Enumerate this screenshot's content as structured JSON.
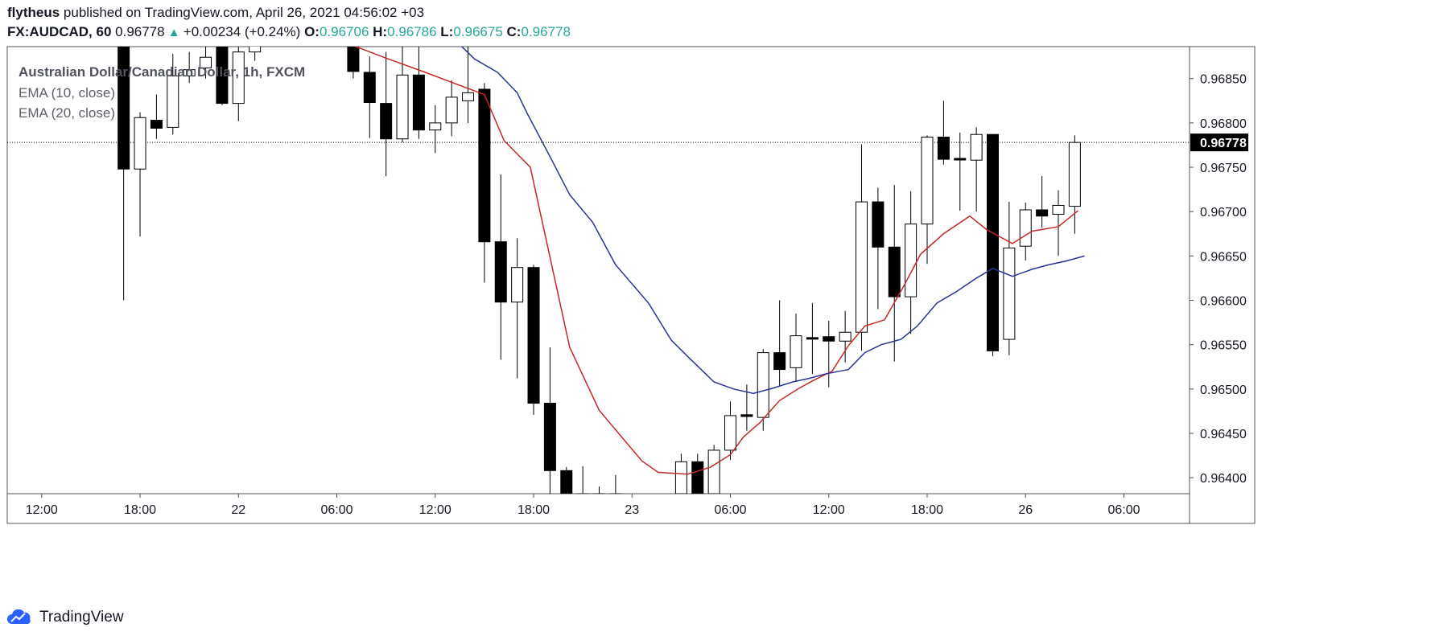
{
  "header": {
    "author": "flytheus",
    "published_text": "published on TradingView.com, April 26, 2021 04:56:02 +03",
    "symbol": "FX:AUDCAD, 60",
    "last_price": "0.96778",
    "change": "+0.00234 (+0.24%)",
    "open_label": "O:",
    "open": "0.96706",
    "high_label": "H:",
    "high": "0.96786",
    "low_label": "L:",
    "low": "0.96675",
    "close_label": "C:",
    "close": "0.96778"
  },
  "legend": {
    "title": "Australian Dollar/Canadian Dollar, 1h, FXCM",
    "ema10": "EMA (10, close)",
    "ema20": "EMA (20, close)"
  },
  "footer": {
    "brand": "TradingView"
  },
  "colors": {
    "up_fill": "#ffffff",
    "down_fill": "#000000",
    "candle_border": "#000000",
    "ema10": "#c62828",
    "ema20": "#283593",
    "price_tag_bg": "#000000",
    "axis_text": "#131722",
    "grid_border": "#50535e"
  },
  "chart_data": {
    "type": "candlestick",
    "title": "Australian Dollar/Canadian Dollar, 1h, FXCM",
    "ylim": [
      0.96382,
      0.96886
    ],
    "yticks": [
      0.964,
      0.9645,
      0.965,
      0.9655,
      0.966,
      0.9665,
      0.967,
      0.9675,
      0.968,
      0.9685
    ],
    "ytick_labels": [
      "0.96400",
      "0.96450",
      "0.96500",
      "0.96550",
      "0.96600",
      "0.96650",
      "0.96700",
      "0.96750",
      "0.96800",
      "0.96850"
    ],
    "xlim": [
      -10.05,
      26.0
    ],
    "xticks": [
      {
        "t": -9,
        "label": "12:00"
      },
      {
        "t": -6,
        "label": "18:00"
      },
      {
        "t": -3,
        "label": "22"
      },
      {
        "t": 0,
        "label": "06:00"
      },
      {
        "t": 3,
        "label": "12:00"
      },
      {
        "t": 6,
        "label": "18:00"
      },
      {
        "t": 9,
        "label": "23"
      },
      {
        "t": 12,
        "label": "06:00"
      },
      {
        "t": 15,
        "label": "12:00"
      },
      {
        "t": 18,
        "label": "18:00"
      },
      {
        "t": 21,
        "label": "26"
      },
      {
        "t": 24,
        "label": "06:00"
      }
    ],
    "current_price": 0.96778,
    "current_price_label": "0.96778",
    "candles": [
      {
        "t": -6.5,
        "o": 0.9689,
        "h": 0.9689,
        "l": 0.966,
        "c": 0.96748
      },
      {
        "t": -6.0,
        "o": 0.96748,
        "h": 0.96812,
        "l": 0.96672,
        "c": 0.96806
      },
      {
        "t": -5.5,
        "o": 0.96803,
        "h": 0.96832,
        "l": 0.96782,
        "c": 0.96794
      },
      {
        "t": -5.0,
        "o": 0.96795,
        "h": 0.96878,
        "l": 0.96787,
        "c": 0.96853
      },
      {
        "t": -4.5,
        "o": 0.96853,
        "h": 0.9688,
        "l": 0.96845,
        "c": 0.9686
      },
      {
        "t": -4.0,
        "o": 0.96862,
        "h": 0.9689,
        "l": 0.9685,
        "c": 0.96874
      },
      {
        "t": -3.5,
        "o": 0.9689,
        "h": 0.9689,
        "l": 0.9682,
        "c": 0.96822
      },
      {
        "t": -3.0,
        "o": 0.96822,
        "h": 0.9689,
        "l": 0.96802,
        "c": 0.9688
      },
      {
        "t": -2.5,
        "o": 0.9688,
        "h": 0.9689,
        "l": 0.9687,
        "c": 0.9689
      },
      {
        "t": 0.5,
        "o": 0.9689,
        "h": 0.9689,
        "l": 0.9685,
        "c": 0.96858
      },
      {
        "t": 1.0,
        "o": 0.96857,
        "h": 0.96875,
        "l": 0.96783,
        "c": 0.96823
      },
      {
        "t": 1.5,
        "o": 0.96822,
        "h": 0.9688,
        "l": 0.9674,
        "c": 0.96782
      },
      {
        "t": 2.0,
        "o": 0.96782,
        "h": 0.9689,
        "l": 0.96778,
        "c": 0.96854
      },
      {
        "t": 2.5,
        "o": 0.96854,
        "h": 0.9689,
        "l": 0.96782,
        "c": 0.96792
      },
      {
        "t": 3.0,
        "o": 0.96792,
        "h": 0.9682,
        "l": 0.96766,
        "c": 0.968
      },
      {
        "t": 3.5,
        "o": 0.968,
        "h": 0.96848,
        "l": 0.96785,
        "c": 0.96829
      },
      {
        "t": 4.0,
        "o": 0.96825,
        "h": 0.9689,
        "l": 0.968,
        "c": 0.96834
      },
      {
        "t": 4.5,
        "o": 0.96838,
        "h": 0.96845,
        "l": 0.9662,
        "c": 0.96666
      },
      {
        "t": 5.0,
        "o": 0.96666,
        "h": 0.96742,
        "l": 0.96533,
        "c": 0.96598
      },
      {
        "t": 5.5,
        "o": 0.96598,
        "h": 0.9667,
        "l": 0.96512,
        "c": 0.96637
      },
      {
        "t": 6.0,
        "o": 0.96637,
        "h": 0.9664,
        "l": 0.96471,
        "c": 0.96484
      },
      {
        "t": 6.5,
        "o": 0.96484,
        "h": 0.96547,
        "l": 0.96382,
        "c": 0.96408
      },
      {
        "t": 7.0,
        "o": 0.96408,
        "h": 0.96412,
        "l": 0.96382,
        "c": 0.96382
      },
      {
        "t": 7.5,
        "o": 0.96382,
        "h": 0.96413,
        "l": 0.96382,
        "c": 0.96382
      },
      {
        "t": 8.0,
        "o": 0.96382,
        "h": 0.9639,
        "l": 0.96382,
        "c": 0.96382
      },
      {
        "t": 8.5,
        "o": 0.96382,
        "h": 0.96403,
        "l": 0.96382,
        "c": 0.96382
      },
      {
        "t": 10.5,
        "o": 0.96382,
        "h": 0.96427,
        "l": 0.96382,
        "c": 0.96418
      },
      {
        "t": 11.0,
        "o": 0.96418,
        "h": 0.96427,
        "l": 0.96382,
        "c": 0.96382
      },
      {
        "t": 11.5,
        "o": 0.96382,
        "h": 0.96437,
        "l": 0.96382,
        "c": 0.96431
      },
      {
        "t": 12.0,
        "o": 0.96431,
        "h": 0.96486,
        "l": 0.9642,
        "c": 0.9647
      },
      {
        "t": 12.5,
        "o": 0.96471,
        "h": 0.96505,
        "l": 0.96453,
        "c": 0.96469
      },
      {
        "t": 13.0,
        "o": 0.96468,
        "h": 0.96545,
        "l": 0.96453,
        "c": 0.96541
      },
      {
        "t": 13.5,
        "o": 0.96541,
        "h": 0.966,
        "l": 0.96503,
        "c": 0.96522
      },
      {
        "t": 14.0,
        "o": 0.96524,
        "h": 0.96585,
        "l": 0.96508,
        "c": 0.9656
      },
      {
        "t": 14.5,
        "o": 0.96558,
        "h": 0.96597,
        "l": 0.96517,
        "c": 0.96557
      },
      {
        "t": 15.0,
        "o": 0.96559,
        "h": 0.96577,
        "l": 0.96502,
        "c": 0.96554
      },
      {
        "t": 15.5,
        "o": 0.96554,
        "h": 0.96588,
        "l": 0.9653,
        "c": 0.96564
      },
      {
        "t": 16.0,
        "o": 0.96564,
        "h": 0.96776,
        "l": 0.96543,
        "c": 0.96711
      },
      {
        "t": 16.5,
        "o": 0.96711,
        "h": 0.96727,
        "l": 0.9659,
        "c": 0.9666
      },
      {
        "t": 17.0,
        "o": 0.9666,
        "h": 0.9673,
        "l": 0.96531,
        "c": 0.96604
      },
      {
        "t": 17.5,
        "o": 0.96604,
        "h": 0.96723,
        "l": 0.96562,
        "c": 0.96686
      },
      {
        "t": 18.0,
        "o": 0.96686,
        "h": 0.96786,
        "l": 0.96641,
        "c": 0.96784
      },
      {
        "t": 18.5,
        "o": 0.96784,
        "h": 0.96825,
        "l": 0.96753,
        "c": 0.96759
      },
      {
        "t": 19.0,
        "o": 0.9676,
        "h": 0.96789,
        "l": 0.96701,
        "c": 0.96759
      },
      {
        "t": 19.5,
        "o": 0.96758,
        "h": 0.96795,
        "l": 0.967,
        "c": 0.96787
      },
      {
        "t": 20.0,
        "o": 0.96787,
        "h": 0.96787,
        "l": 0.96537,
        "c": 0.96543
      },
      {
        "t": 20.5,
        "o": 0.96556,
        "h": 0.96711,
        "l": 0.96538,
        "c": 0.96659
      },
      {
        "t": 21.0,
        "o": 0.96661,
        "h": 0.9671,
        "l": 0.96645,
        "c": 0.96702
      },
      {
        "t": 21.5,
        "o": 0.96702,
        "h": 0.9674,
        "l": 0.96682,
        "c": 0.96695
      },
      {
        "t": 22.0,
        "o": 0.96697,
        "h": 0.96724,
        "l": 0.9665,
        "c": 0.96707
      },
      {
        "t": 22.5,
        "o": 0.96706,
        "h": 0.96786,
        "l": 0.96675,
        "c": 0.96778
      }
    ],
    "series": [
      {
        "name": "EMA (10, close)",
        "color": "#c62828",
        "points": [
          [
            -6.5,
            0.9689
          ],
          [
            -2.0,
            0.9689
          ],
          [
            0.3,
            0.9689
          ],
          [
            1.5,
            0.96873
          ],
          [
            2.7,
            0.96857
          ],
          [
            3.7,
            0.96843
          ],
          [
            4.5,
            0.96832
          ],
          [
            5.1,
            0.9678
          ],
          [
            5.9,
            0.9675
          ],
          [
            7.1,
            0.96547
          ],
          [
            8.0,
            0.96476
          ],
          [
            9.3,
            0.96419
          ],
          [
            9.8,
            0.96406
          ],
          [
            10.7,
            0.96404
          ],
          [
            11.4,
            0.96412
          ],
          [
            12.0,
            0.96426
          ],
          [
            12.4,
            0.96446
          ],
          [
            12.9,
            0.96462
          ],
          [
            13.5,
            0.96487
          ],
          [
            14.1,
            0.96501
          ],
          [
            14.6,
            0.96511
          ],
          [
            15.1,
            0.9652
          ],
          [
            15.6,
            0.96549
          ],
          [
            16.1,
            0.96571
          ],
          [
            16.7,
            0.96578
          ],
          [
            17.3,
            0.96617
          ],
          [
            17.8,
            0.96652
          ],
          [
            18.5,
            0.96675
          ],
          [
            19.3,
            0.96695
          ],
          [
            19.8,
            0.9668
          ],
          [
            20.6,
            0.96664
          ],
          [
            21.2,
            0.96678
          ],
          [
            22.0,
            0.96683
          ],
          [
            22.6,
            0.96701
          ]
        ]
      },
      {
        "name": "EMA (20, close)",
        "color": "#283593",
        "points": [
          [
            -6.5,
            0.9689
          ],
          [
            3.7,
            0.9689
          ],
          [
            4.2,
            0.96872
          ],
          [
            4.9,
            0.96857
          ],
          [
            5.5,
            0.96834
          ],
          [
            5.8,
            0.96811
          ],
          [
            6.5,
            0.96762
          ],
          [
            7.1,
            0.96719
          ],
          [
            7.8,
            0.96688
          ],
          [
            8.5,
            0.9664
          ],
          [
            9.5,
            0.96597
          ],
          [
            10.2,
            0.96555
          ],
          [
            10.8,
            0.96533
          ],
          [
            11.5,
            0.96508
          ],
          [
            12.1,
            0.965
          ],
          [
            12.7,
            0.96495
          ],
          [
            13.3,
            0.96501
          ],
          [
            13.9,
            0.96508
          ],
          [
            14.4,
            0.96512
          ],
          [
            14.9,
            0.96517
          ],
          [
            15.6,
            0.96522
          ],
          [
            16.1,
            0.96541
          ],
          [
            16.6,
            0.9655
          ],
          [
            17.2,
            0.96556
          ],
          [
            17.7,
            0.96571
          ],
          [
            18.3,
            0.96597
          ],
          [
            18.9,
            0.9661
          ],
          [
            19.5,
            0.96625
          ],
          [
            20.0,
            0.96636
          ],
          [
            20.6,
            0.96627
          ],
          [
            21.2,
            0.96635
          ],
          [
            21.7,
            0.9664
          ],
          [
            22.2,
            0.96644
          ],
          [
            22.8,
            0.9665
          ]
        ]
      }
    ]
  }
}
